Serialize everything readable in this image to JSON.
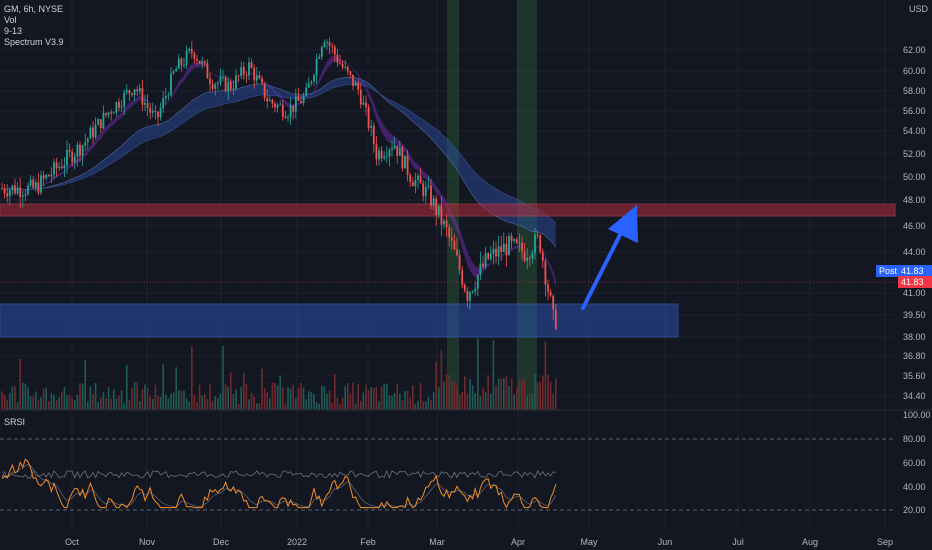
{
  "legend": {
    "symbol": "GM, 6h, NYSE",
    "vol": "Vol",
    "ema": "9-13",
    "spectrum": "Spectrum V3.9"
  },
  "currency": "USD",
  "post_tag": {
    "label": "Post",
    "value": "41.83"
  },
  "last_tag": {
    "value": "41.83"
  },
  "srsi_label": "SRSI",
  "colors": {
    "background": "#131722",
    "up": "#26a69a",
    "down": "#ef5350",
    "resistance_zone": "#b22c3a",
    "support_zone": "#2a4fa8",
    "arrow": "#2962ff",
    "srsi_k": "#f28c28",
    "srsi_d": "#b2b5be"
  },
  "chart_data": [
    {
      "type": "candlestick",
      "title": "GM, 6h, NYSE",
      "x_ticks": [
        "Oct",
        "Nov",
        "Dec",
        "2022",
        "Feb",
        "Mar",
        "Apr",
        "May",
        "Jun",
        "Jul",
        "Aug",
        "Sep"
      ],
      "y_ticks": [
        62.0,
        60.0,
        58.0,
        56.0,
        54.0,
        52.0,
        50.0,
        48.0,
        46.0,
        44.0,
        41.0,
        39.5,
        38.0,
        36.8,
        35.6,
        34.4
      ],
      "y_tick_labels": [
        "62.00",
        "60.00",
        "58.00",
        "56.00",
        "54.00",
        "52.00",
        "50.00",
        "48.00",
        "46.00",
        "44.00",
        "41.00",
        "39.50",
        "38.00",
        "36.80",
        "35.60",
        "34.40"
      ],
      "close_path": [
        [
          "Sep",
          49.0
        ],
        [
          "Oct",
          53.0
        ],
        [
          "Oct",
          56.0
        ],
        [
          "Oct",
          58.5
        ],
        [
          "Nov",
          55.0
        ],
        [
          "Nov",
          60.0
        ],
        [
          "Nov",
          62.0
        ],
        [
          "Nov",
          59.0
        ],
        [
          "Dec",
          58.5
        ],
        [
          "Dec",
          60.5
        ],
        [
          "Dec",
          57.0
        ],
        [
          "Dec",
          56.0
        ],
        [
          "2022",
          57.5
        ],
        [
          "2022",
          63.5
        ],
        [
          "2022",
          60.5
        ],
        [
          "2022",
          58.0
        ],
        [
          "Feb",
          52.0
        ],
        [
          "Feb",
          53.0
        ],
        [
          "Feb",
          50.0
        ],
        [
          "Feb",
          48.5
        ],
        [
          "Mar",
          45.5
        ],
        [
          "Mar",
          41.0
        ],
        [
          "Mar",
          43.5
        ],
        [
          "Mar",
          44.5
        ],
        [
          "Apr",
          44.0
        ],
        [
          "Apr",
          45.0
        ],
        [
          "Apr",
          39.0
        ],
        [
          "Apr",
          40.5
        ],
        [
          "Apr",
          41.83
        ]
      ],
      "resistance_zone": [
        47.2,
        48.0
      ],
      "support_zone": [
        38.8,
        40.5
      ],
      "projection_arrow_target": 47.8
    },
    {
      "type": "line",
      "title": "SRSI",
      "ylim": [
        0,
        100
      ],
      "y_ticks": [
        100,
        80,
        60,
        40,
        20
      ],
      "y_tick_labels": [
        "100.00",
        "80.00",
        "60.00",
        "40.00",
        "20.00"
      ],
      "bands": [
        80,
        20
      ]
    }
  ]
}
